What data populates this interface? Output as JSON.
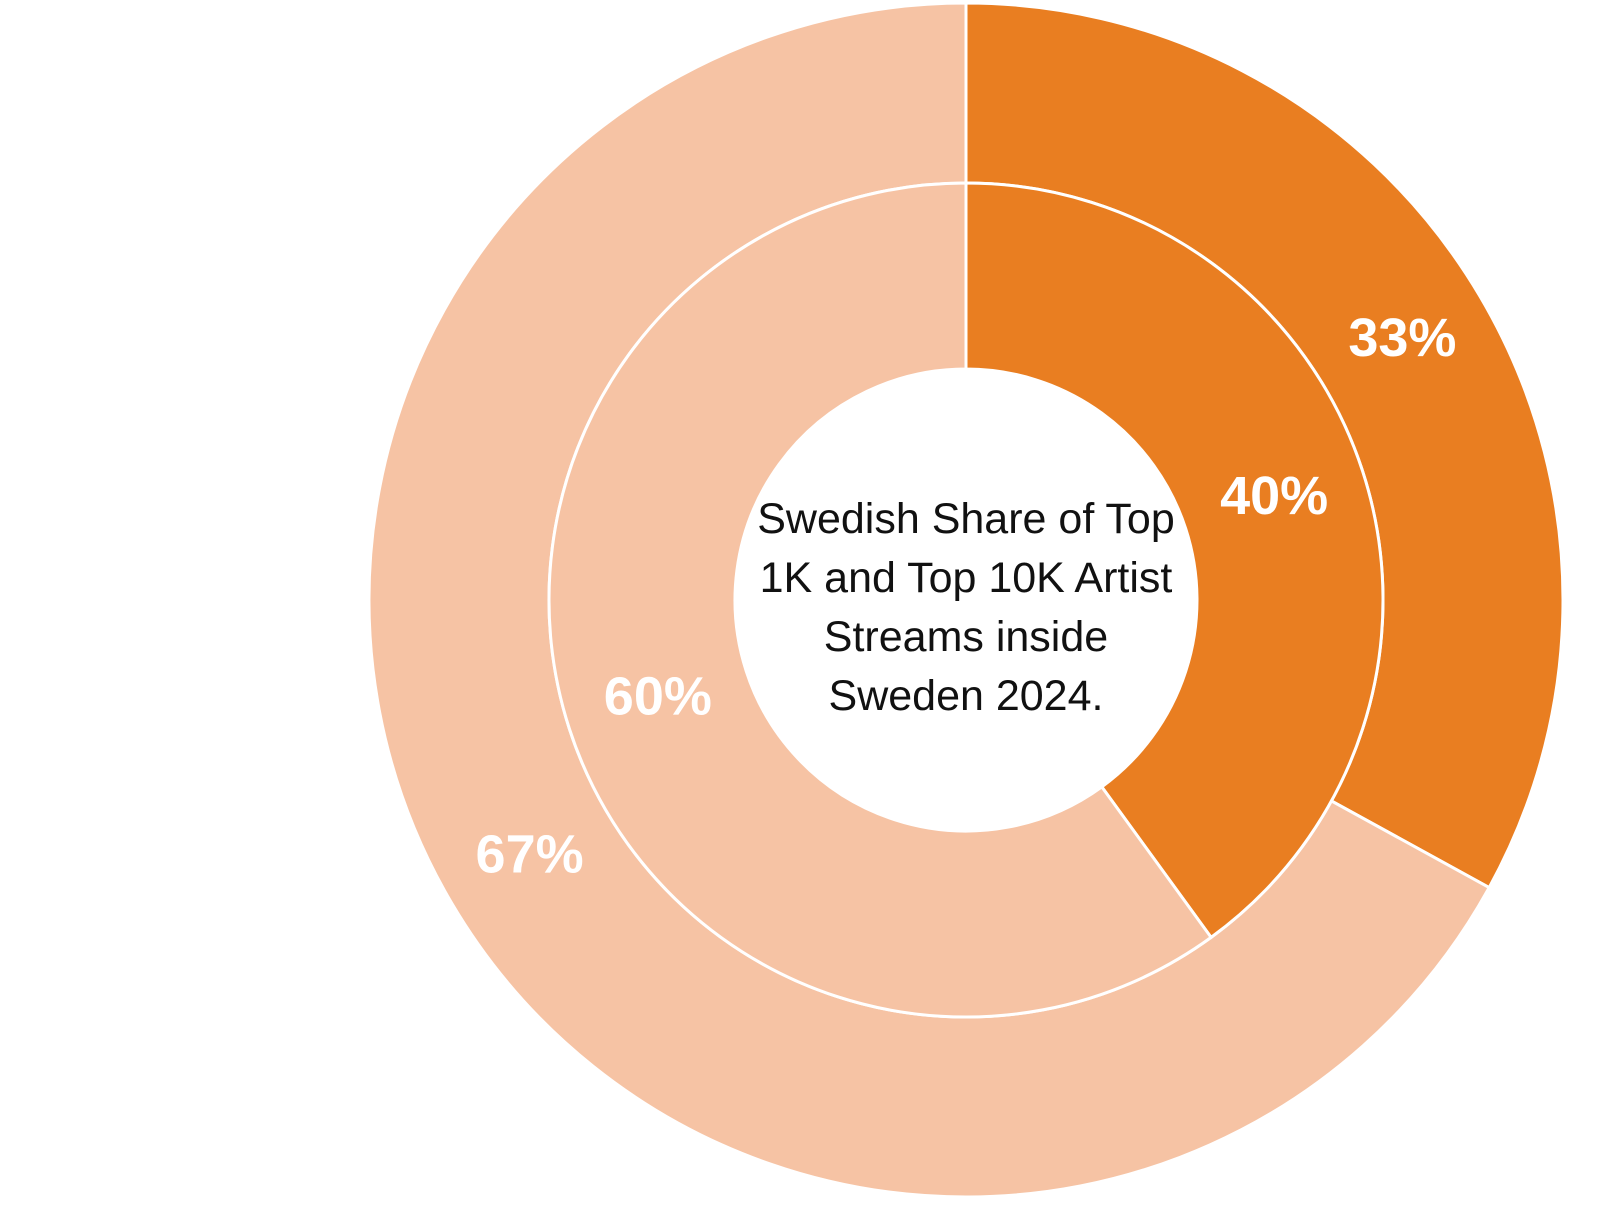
{
  "chart_data": {
    "type": "donut",
    "title": "Swedish Share of Top 1K and Top 10K Artist Streams inside Sweden 2024.",
    "rings": [
      {
        "values": [
          33,
          67
        ],
        "value_labels": [
          "33%",
          "67%"
        ],
        "colors": [
          "#e97e21",
          "#f6c3a4"
        ]
      },
      {
        "values": [
          40,
          60
        ],
        "value_labels": [
          "40%",
          "60%"
        ],
        "colors": [
          "#e97e21",
          "#f6c3a4"
        ]
      }
    ]
  }
}
